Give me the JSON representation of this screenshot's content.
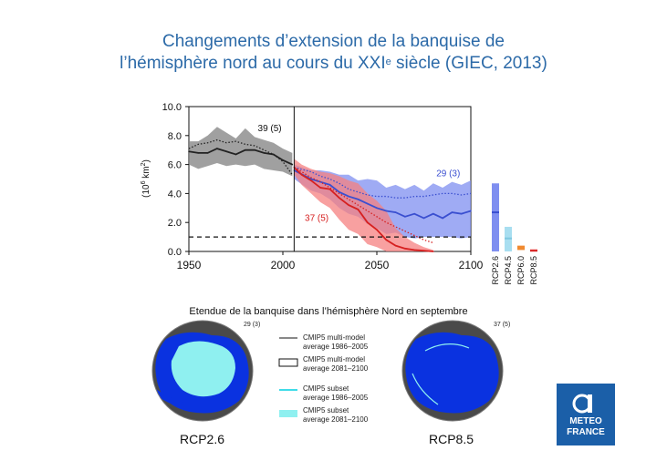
{
  "title": {
    "line1": "Changements d’extension de la banquise de",
    "line2_a": "l’hémisphère nord au cours du XXI",
    "line2_sup": "e",
    "line2_b": " siècle  (GIEC, 2013)"
  },
  "colors": {
    "title": "#2c6aa8",
    "historical": "#222222",
    "rcp26": "#3a4fd0",
    "rcp85": "#d62020",
    "rcp26_fill": "#7f8ff0",
    "rcp85_fill": "#f58080",
    "rcp45_fill": "#a8def0",
    "rcp60": "#f08a30",
    "map_ice": "#8ff0f0",
    "map_ocean": "#0a32e0",
    "map_land": "#4a4a4a",
    "logo": "#1b5fa8"
  },
  "chart_data": {
    "type": "line",
    "title": "",
    "xlabel": "",
    "ylabel": "(10⁶ km²)",
    "ylabel_main": "(10",
    "ylabel_sup": "6",
    "ylabel_unit": " km",
    "ylabel_sup2": "2",
    "ylabel_close": ")",
    "xlim": [
      1950,
      2100
    ],
    "ylim": [
      0,
      10
    ],
    "xticks": [
      "1950",
      "2000",
      "2050",
      "2100"
    ],
    "yticks": [
      "0.0",
      "2.0",
      "4.0",
      "6.0",
      "8.0",
      "10.0"
    ],
    "divider_year": 2006,
    "threshold": 1.0,
    "annotations": [
      {
        "text": "39 (5)",
        "x": 1993,
        "y": 8.3
      },
      {
        "text": "29 (3)",
        "x": 2088,
        "y": 5.2
      },
      {
        "text": "37 (5)",
        "x": 2018,
        "y": 2.1
      }
    ],
    "series": [
      {
        "key": "historical",
        "x": [
          1950,
          1955,
          1960,
          1965,
          1970,
          1975,
          1980,
          1985,
          1990,
          1995,
          2000,
          2005
        ],
        "y": [
          6.9,
          6.8,
          6.8,
          7.1,
          6.9,
          6.7,
          7.0,
          7.0,
          6.8,
          6.7,
          6.3,
          6.0
        ],
        "low": [
          6.0,
          5.7,
          5.9,
          6.1,
          5.9,
          6.0,
          5.9,
          6.0,
          5.7,
          5.6,
          5.5,
          5.2
        ],
        "high": [
          7.6,
          7.6,
          8.0,
          8.6,
          8.2,
          7.8,
          8.5,
          7.9,
          7.7,
          7.5,
          7.1,
          6.8
        ],
        "observed": [
          7.1,
          7.4,
          7.5,
          7.7,
          7.5,
          7.6,
          7.4,
          7.3,
          7.0,
          6.7,
          6.2,
          5.3
        ]
      },
      {
        "key": "rcp26",
        "x": [
          2006,
          2015,
          2020,
          2025,
          2030,
          2035,
          2040,
          2045,
          2050,
          2055,
          2060,
          2065,
          2070,
          2075,
          2080,
          2085,
          2090,
          2095,
          2100
        ],
        "y": [
          5.6,
          5.0,
          4.8,
          4.6,
          4.1,
          3.8,
          3.6,
          3.3,
          3.0,
          2.8,
          2.7,
          2.4,
          2.6,
          2.3,
          2.6,
          2.3,
          2.7,
          2.6,
          2.8
        ],
        "low": [
          5.0,
          4.2,
          4.0,
          3.6,
          3.0,
          2.6,
          2.4,
          1.9,
          1.6,
          1.2,
          1.3,
          1.0,
          0.9,
          1.0,
          1.0,
          1.0,
          1.0,
          0.9,
          1.0
        ],
        "high": [
          6.0,
          5.6,
          5.6,
          5.5,
          5.3,
          5.3,
          4.9,
          5.0,
          4.9,
          4.4,
          4.6,
          4.3,
          4.6,
          4.2,
          4.7,
          4.4,
          4.8,
          4.6,
          4.9
        ],
        "observed": [
          5.8,
          5.5,
          5.2,
          5.0,
          4.7,
          4.3,
          4.1,
          3.9,
          3.8,
          3.8,
          3.7,
          3.7,
          3.8,
          3.8,
          3.9,
          4.0,
          4.0,
          3.9,
          4.0
        ]
      },
      {
        "key": "rcp85",
        "x": [
          2006,
          2010,
          2015,
          2020,
          2025,
          2030,
          2035,
          2040,
          2045,
          2050,
          2055,
          2060,
          2065,
          2070,
          2075,
          2080
        ],
        "y": [
          5.8,
          5.3,
          4.9,
          4.4,
          4.3,
          3.7,
          3.2,
          2.9,
          2.0,
          1.5,
          0.8,
          0.4,
          0.2,
          0.1,
          0.05,
          0.0
        ],
        "low": [
          5.3,
          4.6,
          4.0,
          3.4,
          3.0,
          2.2,
          1.5,
          1.2,
          0.5,
          0.3,
          0.0,
          0.0,
          0.0,
          0.0,
          0.0,
          0.0
        ],
        "high": [
          6.4,
          6.0,
          5.7,
          5.5,
          5.4,
          5.2,
          4.9,
          4.7,
          4.0,
          3.5,
          2.8,
          1.6,
          1.0,
          0.6,
          0.3,
          0.1
        ],
        "observed": [
          5.8,
          5.5,
          5.1,
          4.8,
          4.4,
          4.0,
          3.6,
          3.2,
          2.8,
          2.4,
          2.0,
          1.7,
          1.4,
          1.1,
          0.8,
          0.6
        ]
      }
    ],
    "range_bars": [
      {
        "label": "RCP2.6",
        "low": 0.0,
        "high": 4.7,
        "mid": 2.7
      },
      {
        "label": "RCP4.5",
        "low": 0.0,
        "high": 1.7,
        "mid": 0.9
      },
      {
        "label": "RCP6.0",
        "low": 0.1,
        "high": 0.4,
        "mid": 0.2
      },
      {
        "label": "RCP8.5",
        "low": 0.0,
        "high": 0.15,
        "mid": 0.05
      }
    ]
  },
  "maps": {
    "title": "Etendue de la banquise dans l’hémisphère Nord en septembre",
    "left_label": "RCP2.6",
    "left_count": "29 (3)",
    "right_label": "RCP8.5",
    "right_count": "37 (5)"
  },
  "legend": {
    "items": [
      {
        "line1": "CMIP5 multi-model",
        "line2": "average 1986–2005"
      },
      {
        "line1": "CMIP5 multi-model",
        "line2": "average 2081–2100"
      },
      {
        "line1": "CMIP5 subset",
        "line2": "average 1986–2005"
      },
      {
        "line1": "CMIP5 subset",
        "line2": "average 2081–2100"
      }
    ]
  },
  "logo": {
    "line1": "METEO",
    "line2": "FRANCE"
  }
}
